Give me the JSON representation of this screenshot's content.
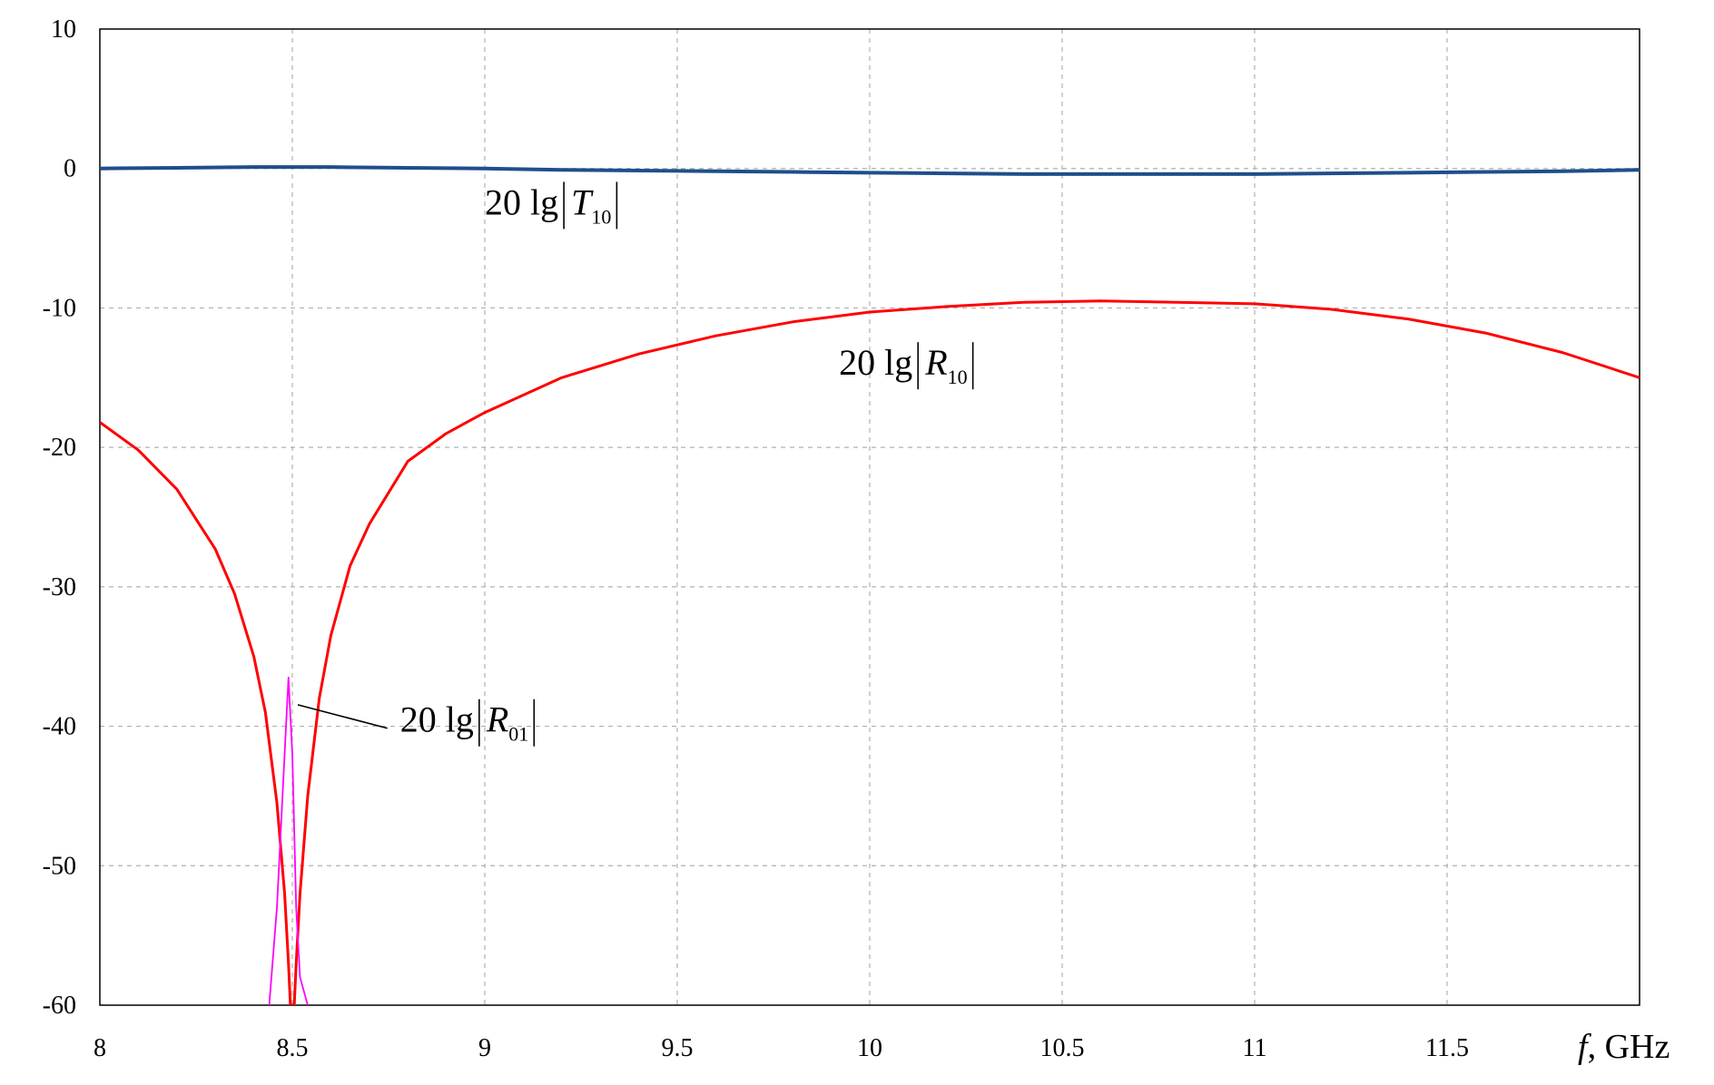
{
  "chart_data": {
    "type": "line",
    "xlim": [
      8,
      12
    ],
    "ylim": [
      -60,
      10
    ],
    "x_ticks": [
      "8",
      "8.5",
      "9",
      "9.5",
      "10",
      "10.5",
      "11",
      "11.5"
    ],
    "y_ticks": [
      "10",
      "0",
      "-10",
      "-20",
      "-30",
      "-40",
      "-50",
      "-60"
    ],
    "x_tick_values": [
      8,
      8.5,
      9,
      9.5,
      10,
      10.5,
      11,
      11.5
    ],
    "y_tick_values": [
      10,
      0,
      -10,
      -20,
      -30,
      -40,
      -50,
      -60
    ],
    "xlabel": {
      "var": "f",
      "unit": ", GHz"
    },
    "ylabel": "",
    "grid": true,
    "series": [
      {
        "name": "20 lg|T10|",
        "label_parts": {
          "prefix": "20  lg",
          "symbol": "T",
          "sub": "10"
        },
        "color": "#1f4e8c",
        "x": [
          8.0,
          8.2,
          8.4,
          8.6,
          8.8,
          9.0,
          9.2,
          9.4,
          9.6,
          9.8,
          10.0,
          10.2,
          10.4,
          10.6,
          10.8,
          11.0,
          11.2,
          11.4,
          11.6,
          11.8,
          12.0
        ],
        "y": [
          0.0,
          0.05,
          0.1,
          0.1,
          0.05,
          0.0,
          -0.1,
          -0.15,
          -0.2,
          -0.25,
          -0.3,
          -0.35,
          -0.4,
          -0.4,
          -0.4,
          -0.4,
          -0.35,
          -0.3,
          -0.25,
          -0.2,
          -0.1
        ]
      },
      {
        "name": "20 lg|R10|",
        "label_parts": {
          "prefix": "20  lg",
          "symbol": "R",
          "sub": "10"
        },
        "color": "#ff0000",
        "x": [
          8.0,
          8.1,
          8.2,
          8.3,
          8.35,
          8.4,
          8.43,
          8.46,
          8.48,
          8.49,
          8.495,
          8.5,
          8.505,
          8.51,
          8.52,
          8.54,
          8.57,
          8.6,
          8.65,
          8.7,
          8.8,
          8.9,
          9.0,
          9.2,
          9.4,
          9.6,
          9.8,
          10.0,
          10.2,
          10.4,
          10.6,
          10.8,
          11.0,
          11.2,
          11.4,
          11.6,
          11.8,
          12.0
        ],
        "y": [
          -18.2,
          -20.2,
          -23.0,
          -27.3,
          -30.5,
          -35.0,
          -39.0,
          -45.5,
          -52.0,
          -57.0,
          -60,
          -60,
          -60,
          -57.0,
          -52.0,
          -45.0,
          -38.0,
          -33.5,
          -28.5,
          -25.5,
          -21.0,
          -19.0,
          -17.5,
          -15.0,
          -13.3,
          -12.0,
          -11.0,
          -10.3,
          -9.9,
          -9.6,
          -9.5,
          -9.6,
          -9.7,
          -10.1,
          -10.8,
          -11.8,
          -13.2,
          -15.0
        ]
      },
      {
        "name": "20 lg|R01|",
        "label_parts": {
          "prefix": "20  lg",
          "symbol": "R",
          "sub": "01"
        },
        "color": "#ff00ff",
        "x": [
          8.44,
          8.46,
          8.48,
          8.49,
          8.5,
          8.51,
          8.52,
          8.54
        ],
        "y": [
          -60,
          -53.0,
          -42.0,
          -36.5,
          -42.0,
          -53.0,
          -58.0,
          -60
        ]
      }
    ],
    "annotations": [
      {
        "series": "20 lg|T10|",
        "x": 9.0,
        "y": -3.3
      },
      {
        "series": "20 lg|R10|",
        "x": 9.92,
        "y": -14.8
      },
      {
        "series": "20 lg|R01|",
        "x": 8.78,
        "y": -40.4,
        "arrow_to": [
          8.5,
          -38.2
        ]
      }
    ]
  }
}
